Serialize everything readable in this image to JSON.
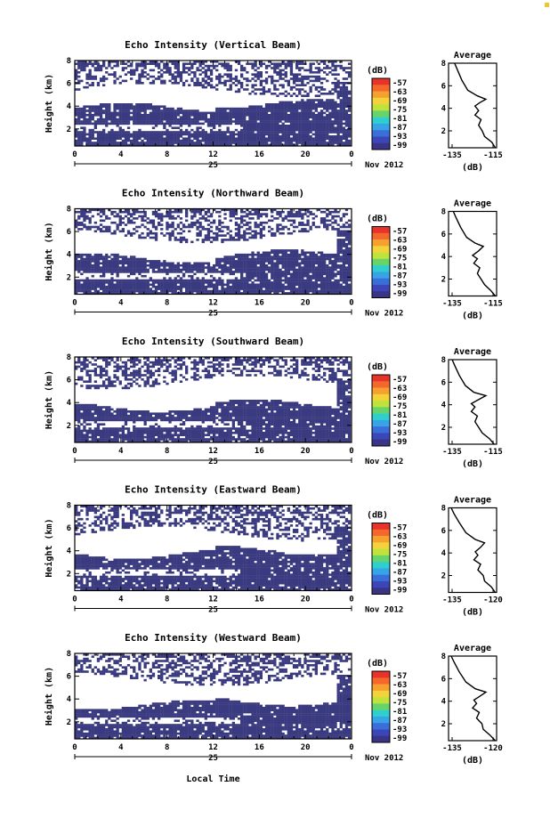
{
  "figure": {
    "xlabel": "Local Time",
    "date_label": "Nov 2012",
    "day_label": "25",
    "colorbar_unit": "(dB)",
    "colorbar_ticks": [
      "-57",
      "-63",
      "-69",
      "-75",
      "-81",
      "-87",
      "-93",
      "-99"
    ],
    "colorbar_colors": [
      "#e8332a",
      "#f4672d",
      "#f6a02f",
      "#f3d23a",
      "#bfe23d",
      "#67d36b",
      "#2fcfd0",
      "#36a4e6",
      "#3a6ed8",
      "#3b46b8",
      "#3a3487"
    ],
    "no_echo_color": "#ffffff",
    "strong_echo_color": "#3a3a80"
  },
  "chart_data": [
    {
      "type": "heatmap",
      "title": "Echo Intensity (Vertical Beam)",
      "ylabel": "Height (km)",
      "x_ticks": [
        "0",
        "4",
        "8",
        "12",
        "16",
        "20",
        "0"
      ],
      "xlim": [
        0,
        24
      ],
      "y_ticks": [
        "2",
        "4",
        "6",
        "8"
      ],
      "ylim": [
        0.5,
        8
      ],
      "echo_layers_km": [
        [
          0.6,
          3.9
        ],
        [
          5.4,
          7.9
        ]
      ],
      "average_profile": {
        "title": "Average",
        "xlabel": "(dB)",
        "x_ticks": [
          "-135",
          "-115"
        ],
        "xlim": [
          -135,
          -115
        ],
        "y_ticks": [
          "2",
          "4",
          "6",
          "8"
        ],
        "ylim": [
          0.5,
          8
        ],
        "points": [
          [
            -115.5,
            0.5
          ],
          [
            -117,
            1.0
          ],
          [
            -120,
            1.5
          ],
          [
            -121,
            2.0
          ],
          [
            -122.5,
            2.5
          ],
          [
            -121.5,
            3.0
          ],
          [
            -124,
            3.4
          ],
          [
            -122.5,
            3.8
          ],
          [
            -124,
            4.2
          ],
          [
            -122,
            4.5
          ],
          [
            -119.5,
            4.8
          ],
          [
            -123,
            5.1
          ],
          [
            -127,
            5.6
          ],
          [
            -129.5,
            6.5
          ],
          [
            -131.5,
            7.5
          ],
          [
            -132.5,
            8.0
          ]
        ]
      }
    },
    {
      "type": "heatmap",
      "title": "Echo Intensity (Northward Beam)",
      "ylabel": "Height (km)",
      "x_ticks": [
        "0",
        "4",
        "8",
        "12",
        "16",
        "20",
        "0"
      ],
      "xlim": [
        0,
        24
      ],
      "y_ticks": [
        "2",
        "4",
        "6",
        "8"
      ],
      "ylim": [
        0.5,
        8
      ],
      "echo_layers_km": [
        [
          0.6,
          3.7
        ],
        [
          5.6,
          7.9
        ]
      ],
      "average_profile": {
        "title": "Average",
        "xlabel": "(dB)",
        "x_ticks": [
          "-135",
          "-115"
        ],
        "xlim": [
          -135,
          -115
        ],
        "y_ticks": [
          "2",
          "4",
          "6",
          "8"
        ],
        "ylim": [
          0.5,
          8
        ],
        "points": [
          [
            -115.5,
            0.5
          ],
          [
            -117.5,
            1.0
          ],
          [
            -120,
            1.5
          ],
          [
            -121.5,
            2.0
          ],
          [
            -123,
            2.5
          ],
          [
            -122,
            3.0
          ],
          [
            -124.5,
            3.4
          ],
          [
            -123,
            3.8
          ],
          [
            -125,
            4.1
          ],
          [
            -122.5,
            4.5
          ],
          [
            -120.5,
            4.9
          ],
          [
            -124,
            5.2
          ],
          [
            -127.5,
            5.7
          ],
          [
            -130,
            6.6
          ],
          [
            -132,
            7.5
          ],
          [
            -133,
            8.0
          ]
        ]
      }
    },
    {
      "type": "heatmap",
      "title": "Echo Intensity (Southward Beam)",
      "ylabel": "Height (km)",
      "x_ticks": [
        "0",
        "4",
        "8",
        "12",
        "16",
        "20",
        "0"
      ],
      "xlim": [
        0,
        24
      ],
      "y_ticks": [
        "2",
        "4",
        "6",
        "8"
      ],
      "ylim": [
        0.5,
        8
      ],
      "echo_layers_km": [
        [
          0.6,
          3.6
        ],
        [
          5.8,
          7.9
        ]
      ],
      "average_profile": {
        "title": "Average",
        "xlabel": "(dB)",
        "x_ticks": [
          "-135",
          "-115"
        ],
        "xlim": [
          -135,
          -115
        ],
        "y_ticks": [
          "2",
          "4",
          "6",
          "8"
        ],
        "ylim": [
          0.5,
          8
        ],
        "points": [
          [
            -116,
            0.5
          ],
          [
            -118,
            1.0
          ],
          [
            -121,
            1.5
          ],
          [
            -122.5,
            2.0
          ],
          [
            -124,
            2.5
          ],
          [
            -123,
            3.0
          ],
          [
            -125.5,
            3.4
          ],
          [
            -124,
            3.8
          ],
          [
            -125.5,
            4.1
          ],
          [
            -123,
            4.4
          ],
          [
            -119.5,
            4.8
          ],
          [
            -124.5,
            5.1
          ],
          [
            -128,
            5.7
          ],
          [
            -130.5,
            6.6
          ],
          [
            -132.5,
            7.5
          ],
          [
            -133.5,
            8.0
          ]
        ]
      }
    },
    {
      "type": "heatmap",
      "title": "Echo Intensity (Eastward Beam)",
      "ylabel": "Height (km)",
      "x_ticks": [
        "0",
        "4",
        "8",
        "12",
        "16",
        "20",
        "0"
      ],
      "xlim": [
        0,
        24
      ],
      "y_ticks": [
        "2",
        "4",
        "6",
        "8"
      ],
      "ylim": [
        0.5,
        8
      ],
      "echo_layers_km": [
        [
          0.6,
          3.7
        ],
        [
          5.5,
          7.9
        ]
      ],
      "average_profile": {
        "title": "Average",
        "xlabel": "(dB)",
        "x_ticks": [
          "-135",
          "-120"
        ],
        "xlim": [
          -135,
          -117
        ],
        "y_ticks": [
          "2",
          "4",
          "6",
          "8"
        ],
        "ylim": [
          0.5,
          8
        ],
        "points": [
          [
            -117.5,
            0.5
          ],
          [
            -119,
            1.0
          ],
          [
            -121.5,
            1.5
          ],
          [
            -122,
            2.0
          ],
          [
            -124,
            2.5
          ],
          [
            -123,
            3.0
          ],
          [
            -125.5,
            3.4
          ],
          [
            -124,
            3.8
          ],
          [
            -125,
            4.1
          ],
          [
            -123,
            4.5
          ],
          [
            -121.5,
            4.9
          ],
          [
            -125,
            5.2
          ],
          [
            -128.5,
            5.8
          ],
          [
            -131,
            6.7
          ],
          [
            -133,
            7.5
          ],
          [
            -134,
            8.0
          ]
        ]
      }
    },
    {
      "type": "heatmap",
      "title": "Echo Intensity (Westward Beam)",
      "ylabel": "Height (km)",
      "x_ticks": [
        "0",
        "4",
        "8",
        "12",
        "16",
        "20",
        "0"
      ],
      "xlim": [
        0,
        24
      ],
      "y_ticks": [
        "2",
        "4",
        "6",
        "8"
      ],
      "ylim": [
        0.5,
        8
      ],
      "echo_layers_km": [
        [
          0.6,
          3.5
        ],
        [
          5.7,
          7.9
        ]
      ],
      "average_profile": {
        "title": "Average",
        "xlabel": "(dB)",
        "x_ticks": [
          "-135",
          "-120"
        ],
        "xlim": [
          -135,
          -117
        ],
        "y_ticks": [
          "2",
          "4",
          "6",
          "8"
        ],
        "ylim": [
          0.5,
          8
        ],
        "points": [
          [
            -117.5,
            0.5
          ],
          [
            -119.5,
            1.0
          ],
          [
            -122,
            1.5
          ],
          [
            -122.5,
            2.0
          ],
          [
            -124.5,
            2.5
          ],
          [
            -123.5,
            3.0
          ],
          [
            -126,
            3.4
          ],
          [
            -124.5,
            3.8
          ],
          [
            -125.5,
            4.1
          ],
          [
            -123.5,
            4.4
          ],
          [
            -121,
            4.8
          ],
          [
            -125,
            5.1
          ],
          [
            -128.5,
            5.7
          ],
          [
            -131,
            6.6
          ],
          [
            -133,
            7.5
          ],
          [
            -134,
            8.0
          ]
        ]
      }
    }
  ]
}
